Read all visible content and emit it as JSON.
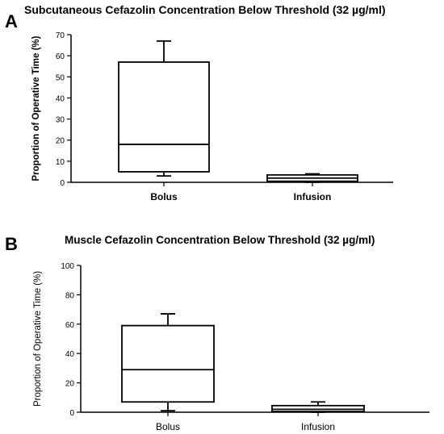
{
  "chart_data": [
    {
      "type": "boxplot",
      "panel_label": "A",
      "title": "Subcutaneous Cefazolin Concentration Below Threshold (32 µg/ml)",
      "ylabel": "Proportion of Operative Time (%)",
      "xlabel": "",
      "ylim": [
        0,
        70
      ],
      "yticks": [
        "0",
        "10",
        "20",
        "30",
        "40",
        "50",
        "60",
        "70"
      ],
      "grid": false,
      "categories": [
        "Bolus",
        "Infusion"
      ],
      "boxes": [
        {
          "min": 3,
          "q1": 5,
          "median": 18,
          "q3": 57,
          "max": 67
        },
        {
          "min": 0,
          "q1": 0.5,
          "median": 2,
          "q3": 3.5,
          "max": 4
        }
      ]
    },
    {
      "type": "boxplot",
      "panel_label": "B",
      "title": "Muscle Cefazolin Concentration Below Threshold (32 µg/ml)",
      "ylabel": "Proportion of Operative Time (%)",
      "xlabel": "",
      "ylim": [
        0,
        100
      ],
      "yticks": [
        "0",
        "20",
        "40",
        "60",
        "80",
        "100"
      ],
      "grid": false,
      "categories": [
        "Bolus",
        "Infusion"
      ],
      "boxes": [
        {
          "min": 1,
          "q1": 7,
          "median": 29,
          "q3": 59,
          "max": 67
        },
        {
          "min": 0,
          "q1": 0.5,
          "median": 2,
          "q3": 4.5,
          "max": 7
        }
      ]
    }
  ]
}
